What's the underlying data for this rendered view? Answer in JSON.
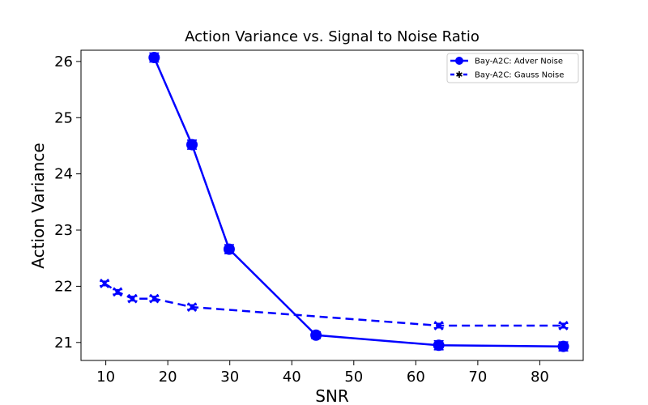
{
  "chart_data": {
    "type": "line",
    "title": "Action Variance vs. Signal to Noise Ratio",
    "xlabel": "SNR",
    "ylabel": "Action Variance",
    "xlim": [
      6,
      87
    ],
    "ylim": [
      20.68,
      26.2
    ],
    "xticks": [
      10,
      20,
      30,
      40,
      50,
      60,
      70,
      80
    ],
    "yticks": [
      21,
      22,
      23,
      24,
      25,
      26
    ],
    "grid": false,
    "legend_position": "top-right",
    "series": [
      {
        "name": "Bay-A2C: Adver Noise",
        "color": "#0000ff",
        "line_style": "solid",
        "marker": "circle",
        "x": [
          17.8,
          23.9,
          29.9,
          43.9,
          63.7,
          83.8
        ],
        "y": [
          26.07,
          24.52,
          22.66,
          21.13,
          20.95,
          20.93
        ],
        "error": [
          0.08,
          0.08,
          0.08,
          0.06,
          0.08,
          0.08
        ]
      },
      {
        "name": "Bay-A2C: Gauss Noise",
        "color": "#0000ff",
        "line_style": "dashed",
        "marker": "x",
        "x": [
          9.8,
          11.9,
          14.3,
          17.8,
          23.9,
          63.7,
          83.8
        ],
        "y": [
          22.05,
          21.9,
          21.78,
          21.78,
          21.63,
          21.3,
          21.3
        ],
        "error": [
          0.04,
          0.04,
          0.04,
          0.04,
          0.04,
          0.04,
          0.04
        ]
      }
    ]
  }
}
